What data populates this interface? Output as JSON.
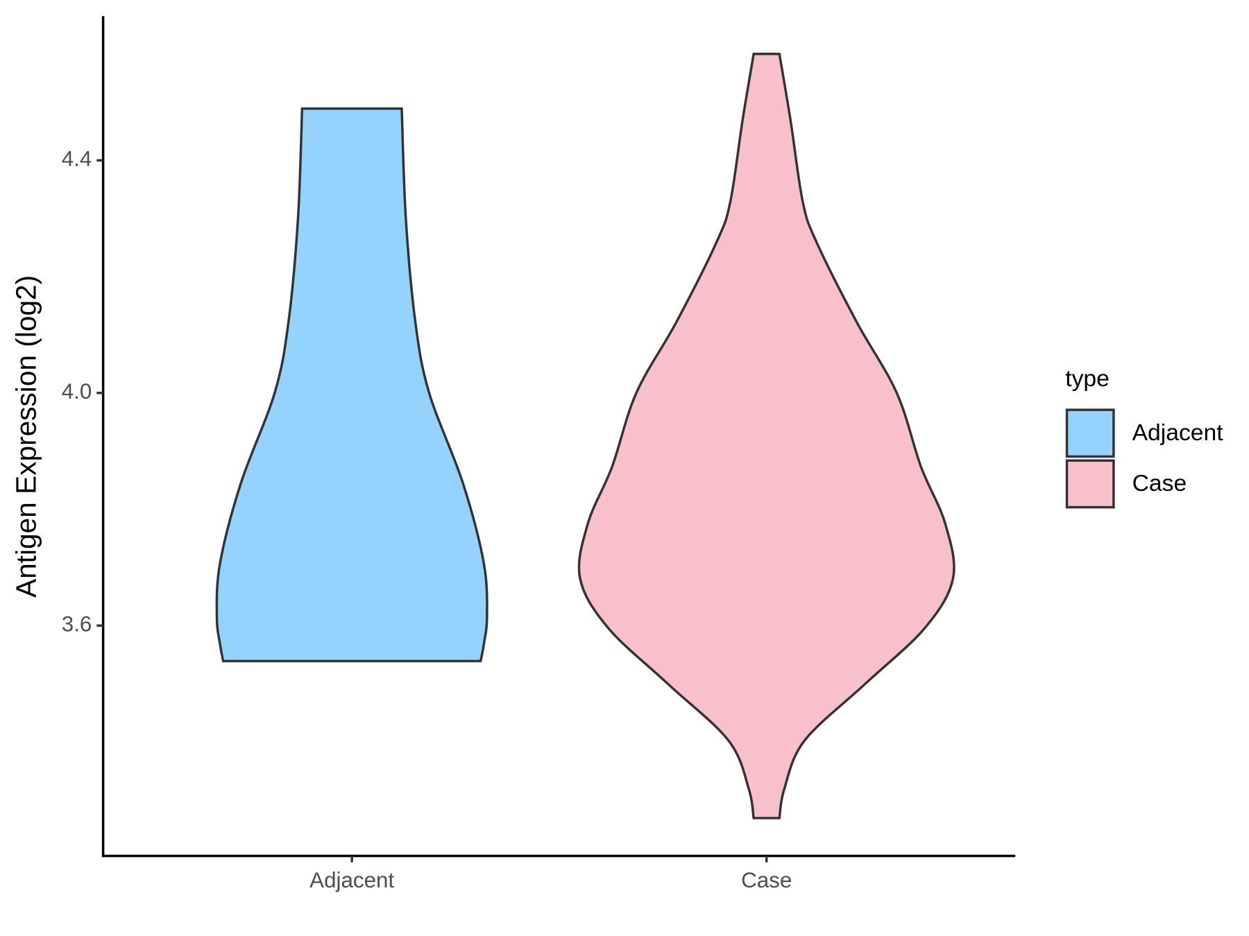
{
  "chart_data": {
    "type": "violin",
    "y_label": "Antigen Expression (log2)",
    "categories": [
      "Adjacent",
      "Case"
    ],
    "legend_title": "type",
    "series": [
      {
        "name": "Adjacent",
        "color": "#93d3fe",
        "y": [
          3.539,
          3.568,
          3.615,
          3.707,
          3.845,
          4.0,
          4.122,
          4.3,
          4.489
        ],
        "width": [
          0.69,
          0.707,
          0.724,
          0.707,
          0.595,
          0.414,
          0.34,
          0.289,
          0.267
        ]
      },
      {
        "name": "Case",
        "color": "#f7c0cb",
        "y": [
          3.269,
          3.319,
          3.402,
          3.499,
          3.596,
          3.682,
          3.776,
          3.873,
          4.0,
          4.122,
          4.26,
          4.329,
          4.468,
          4.583
        ],
        "width": [
          0.069,
          0.095,
          0.203,
          0.526,
          0.849,
          1.0,
          0.957,
          0.828,
          0.698,
          0.483,
          0.267,
          0.194,
          0.129,
          0.069
        ]
      }
    ],
    "ylim": [
      3.204,
      4.648
    ],
    "yticks": [
      3.6,
      {
        "value": 4,
        "label": "4.0"
      },
      4.4
    ],
    "legend": "right"
  }
}
